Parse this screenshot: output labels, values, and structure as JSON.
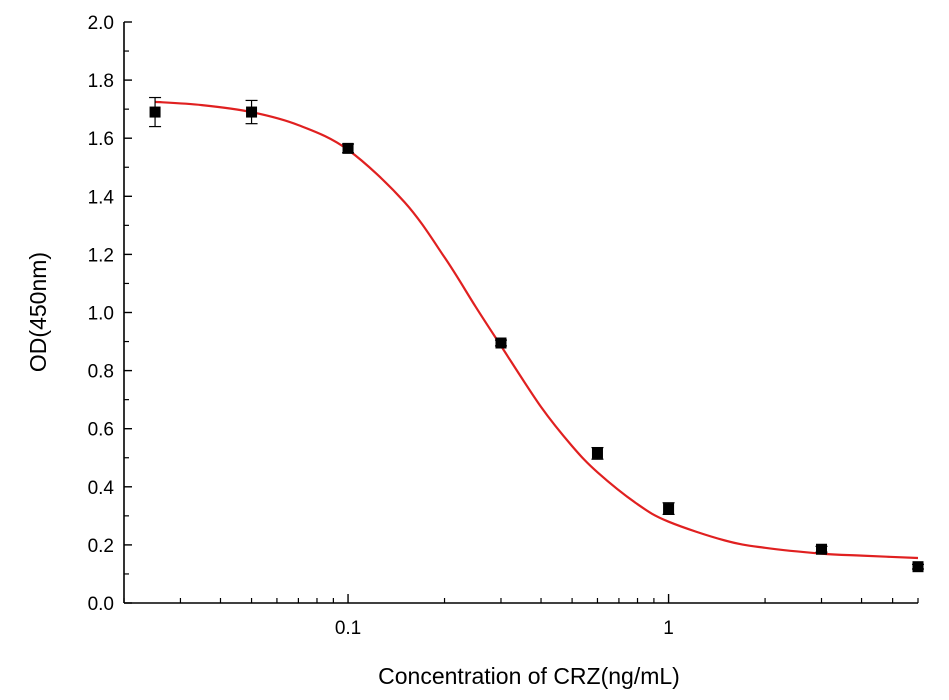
{
  "chart_data": {
    "type": "scatter",
    "title": "",
    "xlabel": "Concentration of CRZ(ng/mL)",
    "ylabel": "OD(450nm)",
    "x_scale": "log",
    "xlim": [
      0.02,
      6
    ],
    "ylim": [
      0,
      2.0
    ],
    "x_major_ticks": [
      0.1,
      1
    ],
    "x_tick_labels": [
      "0.1",
      "1"
    ],
    "y_ticks": [
      0.0,
      0.2,
      0.4,
      0.6,
      0.8,
      1.0,
      1.2,
      1.4,
      1.6,
      1.8,
      2.0
    ],
    "y_tick_labels": [
      "0.0",
      "0.2",
      "0.4",
      "0.6",
      "0.8",
      "1.0",
      "1.2",
      "1.4",
      "1.6",
      "1.8",
      "2.0"
    ],
    "grid": false,
    "legend": "none",
    "series": [
      {
        "type": "scatter",
        "color": "#000000",
        "marker": "square",
        "points": [
          {
            "x": 0.025,
            "y": 1.69,
            "err": 0.05
          },
          {
            "x": 0.05,
            "y": 1.69,
            "err": 0.04
          },
          {
            "x": 0.1,
            "y": 1.565,
            "err": 0.015
          },
          {
            "x": 0.3,
            "y": 0.895,
            "err": 0.01
          },
          {
            "x": 0.6,
            "y": 0.515,
            "err": 0.02
          },
          {
            "x": 1.0,
            "y": 0.325,
            "err": 0.02
          },
          {
            "x": 3.0,
            "y": 0.185,
            "err": 0.01
          },
          {
            "x": 6.0,
            "y": 0.125,
            "err": 0.008
          }
        ]
      },
      {
        "type": "line",
        "color": "#e02020",
        "fit": "four-parameter logistic",
        "x": [
          0.025,
          0.035,
          0.05,
          0.07,
          0.1,
          0.15,
          0.2,
          0.25,
          0.3,
          0.4,
          0.5,
          0.6,
          0.8,
          1.0,
          1.5,
          2.0,
          3.0,
          4.0,
          6.0
        ],
        "y": [
          1.725,
          1.714,
          1.69,
          1.645,
          1.56,
          1.38,
          1.19,
          1.02,
          0.885,
          0.675,
          0.54,
          0.45,
          0.34,
          0.28,
          0.215,
          0.19,
          0.17,
          0.163,
          0.155
        ]
      }
    ]
  }
}
